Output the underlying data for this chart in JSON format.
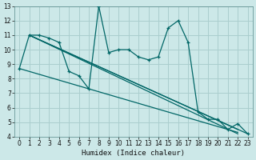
{
  "xlabel": "Humidex (Indice chaleur)",
  "bg_color": "#cce8e8",
  "grid_color": "#aacece",
  "line_color": "#006666",
  "xlim": [
    -0.5,
    23.5
  ],
  "ylim": [
    4,
    13
  ],
  "yticks": [
    4,
    5,
    6,
    7,
    8,
    9,
    10,
    11,
    12,
    13
  ],
  "xticks": [
    0,
    1,
    2,
    3,
    4,
    5,
    6,
    7,
    8,
    9,
    10,
    11,
    12,
    13,
    14,
    15,
    16,
    17,
    18,
    19,
    20,
    21,
    22,
    23
  ],
  "main_x": [
    0,
    1,
    2,
    3,
    4,
    5,
    6,
    7,
    8,
    9,
    10,
    11,
    12,
    13,
    14,
    15,
    16,
    17,
    18,
    19,
    20,
    21,
    22,
    23
  ],
  "main_y": [
    8.7,
    11.0,
    11.0,
    10.8,
    10.5,
    8.5,
    8.2,
    7.3,
    13.0,
    9.8,
    10.0,
    10.0,
    9.5,
    9.3,
    9.5,
    11.5,
    12.0,
    10.5,
    5.7,
    5.2,
    5.2,
    4.5,
    4.9,
    4.2
  ],
  "trend_lines": [
    {
      "x": [
        1,
        23
      ],
      "y": [
        11.0,
        4.2
      ]
    },
    {
      "x": [
        1,
        22
      ],
      "y": [
        11.0,
        4.5
      ]
    },
    {
      "x": [
        1,
        22
      ],
      "y": [
        11.0,
        4.2
      ]
    },
    {
      "x": [
        0,
        22
      ],
      "y": [
        8.7,
        4.3
      ]
    }
  ]
}
